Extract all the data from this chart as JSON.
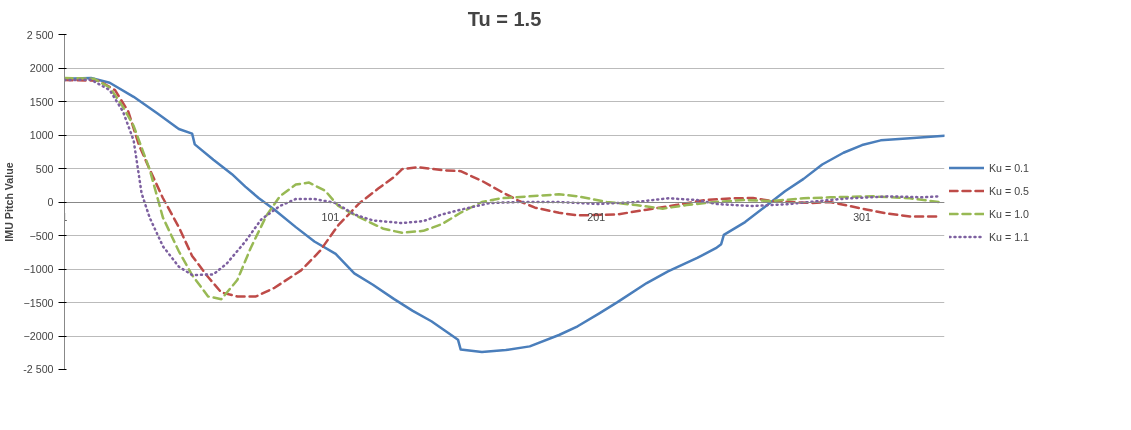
{
  "chart_data": {
    "type": "line",
    "title": "Tu = 1.5",
    "ylabel": "IMU Pitch Value",
    "xlim": [
      1,
      332
    ],
    "xticks": [
      1,
      101,
      201,
      301
    ],
    "ylim": [
      -2500,
      2500
    ],
    "yticks": [
      {
        "value": 2500,
        "label": "2 500"
      },
      2000,
      1500,
      1000,
      500,
      0,
      -500,
      -1000,
      -1500,
      -2000,
      {
        "value": -2500,
        "label": "-2 500"
      }
    ],
    "grid": "y",
    "legend": "right",
    "series": [
      {
        "name": "Ku = 0.1",
        "color": "#4a7ebb",
        "line_style": "solid",
        "x": [
          1,
          11,
          18,
          27,
          36,
          44,
          49,
          50,
          57,
          64,
          69,
          74,
          80,
          88,
          95,
          103,
          110,
          117,
          125,
          132,
          139,
          147,
          149,
          150,
          158,
          167,
          176,
          187,
          194,
          202,
          209,
          220,
          228,
          239,
          246,
          248,
          249,
          257,
          264,
          272,
          279,
          286,
          294,
          301,
          308,
          319,
          332
        ],
        "values": [
          1840,
          1850,
          1780,
          1570,
          1320,
          1090,
          1020,
          860,
          630,
          415,
          230,
          60,
          -115,
          -375,
          -590,
          -775,
          -1065,
          -1235,
          -1450,
          -1625,
          -1780,
          -2000,
          -2055,
          -2200,
          -2240,
          -2210,
          -2155,
          -1985,
          -1855,
          -1665,
          -1495,
          -1210,
          -1035,
          -835,
          -690,
          -630,
          -490,
          -300,
          -85,
          160,
          345,
          560,
          735,
          850,
          920,
          950,
          990
        ]
      },
      {
        "name": "Ku = 0.5",
        "color": "#be4b48",
        "line_style": "dashed",
        "x": [
          1,
          14,
          20,
          25,
          29,
          33,
          38,
          44,
          49,
          55,
          60,
          66,
          73,
          80,
          90,
          97,
          104,
          112,
          119,
          125,
          128,
          134,
          143,
          150,
          158,
          165,
          172,
          178,
          187,
          194,
          209,
          220,
          231,
          242,
          253,
          260,
          267,
          282,
          289,
          303,
          310,
          319,
          330
        ],
        "values": [
          1820,
          1810,
          1670,
          1350,
          850,
          490,
          60,
          -375,
          -805,
          -1120,
          -1350,
          -1410,
          -1410,
          -1280,
          -1020,
          -735,
          -345,
          -15,
          200,
          375,
          490,
          520,
          475,
          460,
          315,
          160,
          15,
          -85,
          -160,
          -200,
          -185,
          -115,
          -45,
          30,
          55,
          60,
          15,
          -15,
          0,
          -115,
          -170,
          -215,
          -215
        ]
      },
      {
        "name": "Ku = 1.0",
        "color": "#98b954",
        "line_style": "dashed",
        "x": [
          1,
          12,
          18,
          23,
          27,
          33,
          38,
          44,
          49,
          55,
          60,
          66,
          71,
          77,
          82,
          88,
          93,
          99,
          104,
          112,
          121,
          128,
          136,
          143,
          150,
          158,
          165,
          176,
          187,
          194,
          205,
          216,
          226,
          235,
          246,
          257,
          267,
          279,
          289,
          305,
          319,
          330
        ],
        "values": [
          1850,
          1840,
          1710,
          1420,
          1135,
          490,
          -230,
          -735,
          -1090,
          -1410,
          -1450,
          -1165,
          -690,
          -200,
          85,
          260,
          290,
          170,
          -60,
          -230,
          -400,
          -460,
          -430,
          -330,
          -160,
          0,
          55,
          85,
          115,
          85,
          0,
          -45,
          -100,
          -45,
          0,
          30,
          15,
          55,
          70,
          85,
          55,
          0
        ]
      },
      {
        "name": "Ku = 1.1",
        "color": "#7d60a0",
        "line_style": "dotted",
        "x": [
          1,
          11,
          18,
          23,
          27,
          30,
          33,
          38,
          44,
          49,
          57,
          62,
          69,
          75,
          82,
          88,
          95,
          103,
          110,
          117,
          128,
          136,
          143,
          150,
          161,
          172,
          187,
          202,
          216,
          228,
          239,
          246,
          260,
          274,
          285,
          296,
          311,
          324,
          330
        ],
        "values": [
          1820,
          1825,
          1670,
          1350,
          920,
          130,
          -230,
          -660,
          -965,
          -1090,
          -1080,
          -920,
          -590,
          -260,
          -60,
          45,
          45,
          -15,
          -185,
          -275,
          -315,
          -285,
          -185,
          -115,
          -15,
          0,
          0,
          -30,
          0,
          55,
          30,
          -30,
          -60,
          -30,
          15,
          55,
          85,
          70,
          85
        ]
      }
    ]
  }
}
